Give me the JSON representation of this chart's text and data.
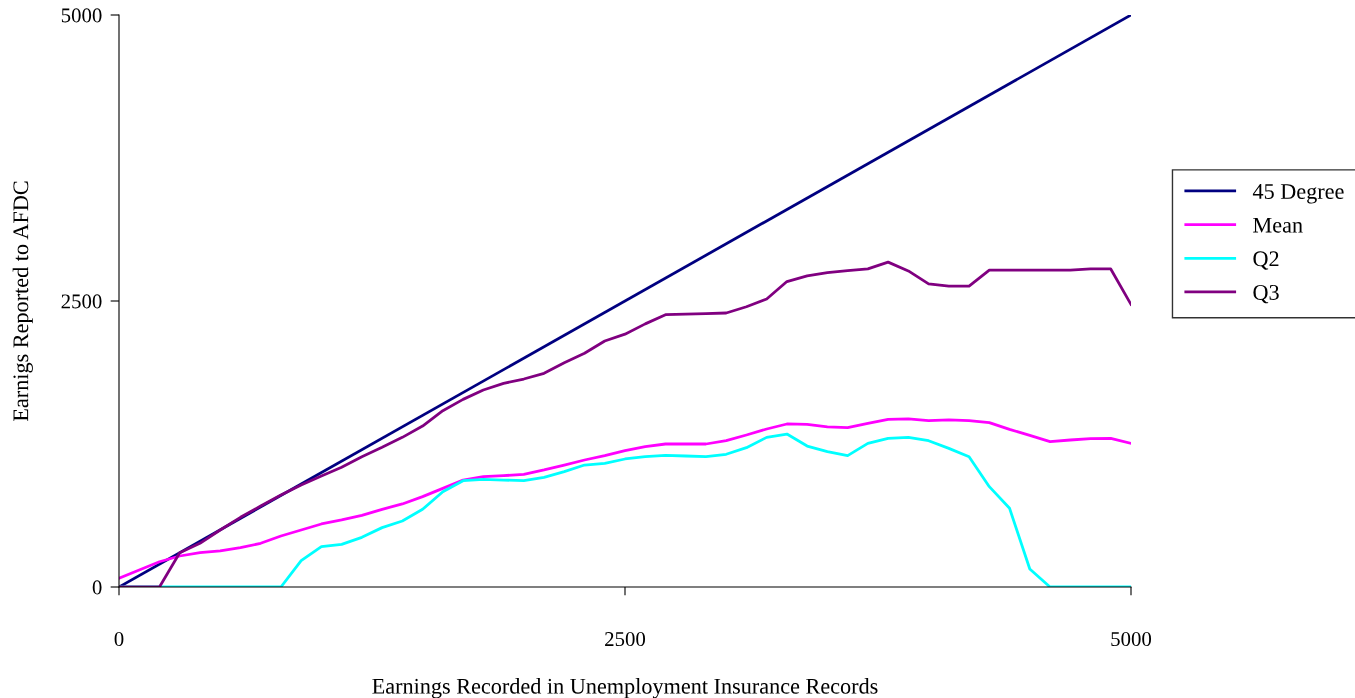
{
  "chart_data": {
    "type": "line",
    "xlabel": "Earnings Recorded in Unemployment Insurance Records",
    "ylabel": "Earnigs Reported to AFDC",
    "x": [
      0,
      100,
      200,
      300,
      400,
      500,
      600,
      700,
      800,
      900,
      1000,
      1100,
      1200,
      1300,
      1400,
      1500,
      1600,
      1700,
      1800,
      1900,
      2000,
      2100,
      2200,
      2300,
      2400,
      2500,
      2600,
      2700,
      2800,
      2900,
      3000,
      3100,
      3200,
      3300,
      3400,
      3500,
      3600,
      3700,
      3800,
      3900,
      4000,
      4100,
      4200,
      4300,
      4400,
      4500,
      4600,
      4700,
      4800,
      4900,
      5000
    ],
    "series": [
      {
        "name": "45 Degree",
        "color": "#000080",
        "x": [
          0,
          5000
        ],
        "values": [
          0,
          5000
        ]
      },
      {
        "name": "Mean",
        "color": "#ff00ff",
        "values": [
          76,
          149,
          221,
          271,
          300,
          315,
          344,
          382,
          446,
          498,
          551,
          586,
          626,
          679,
          726,
          790,
          862,
          935,
          964,
          973,
          985,
          1023,
          1066,
          1110,
          1148,
          1192,
          1227,
          1250,
          1250,
          1250,
          1279,
          1329,
          1381,
          1425,
          1422,
          1400,
          1393,
          1431,
          1466,
          1469,
          1454,
          1460,
          1454,
          1437,
          1378,
          1326,
          1271,
          1285,
          1297,
          1300,
          1256
        ]
      },
      {
        "name": "Q2",
        "color": "#00ffff",
        "values": [
          0,
          0,
          0,
          0,
          0,
          0,
          0,
          0,
          0,
          230,
          353,
          373,
          434,
          519,
          577,
          679,
          833,
          929,
          941,
          935,
          929,
          959,
          1008,
          1066,
          1081,
          1119,
          1139,
          1151,
          1145,
          1139,
          1160,
          1218,
          1308,
          1337,
          1232,
          1183,
          1148,
          1256,
          1300,
          1308,
          1279,
          1212,
          1139,
          877,
          688,
          157,
          0,
          0,
          0,
          0,
          0
        ]
      },
      {
        "name": "Q3",
        "color": "#800080",
        "values": [
          0,
          0,
          0,
          300,
          382,
          498,
          609,
          708,
          804,
          892,
          970,
          1046,
          1139,
          1221,
          1308,
          1407,
          1541,
          1640,
          1722,
          1780,
          1818,
          1868,
          1961,
          2043,
          2150,
          2210,
          2300,
          2380,
          2385,
          2390,
          2395,
          2450,
          2517,
          2670,
          2720,
          2748,
          2765,
          2781,
          2840,
          2763,
          2650,
          2630,
          2630,
          2770,
          2770,
          2770,
          2770,
          2770,
          2780,
          2780,
          2470
        ]
      }
    ],
    "xlim": [
      0,
      5000
    ],
    "xticks": [
      0,
      2500,
      5000
    ],
    "ylim": [
      0,
      5000
    ],
    "yticks": [
      0,
      2500,
      5000
    ],
    "grid": false,
    "legend": "right",
    "marker": "none",
    "line_style": "solid"
  }
}
